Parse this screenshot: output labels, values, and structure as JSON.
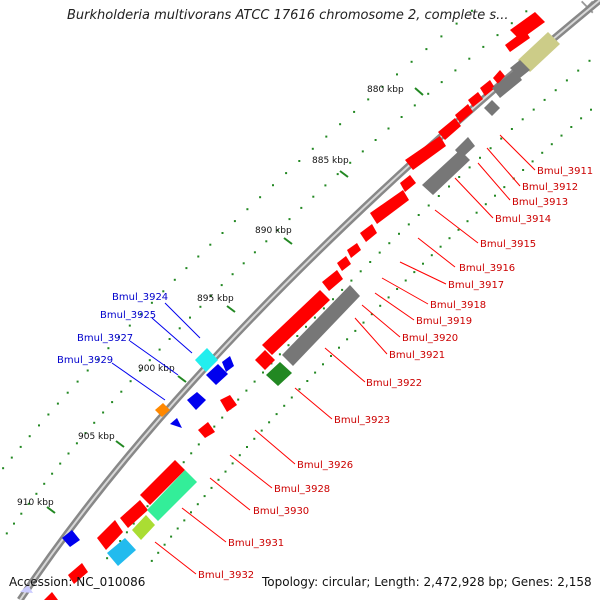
{
  "window": {
    "title": "Burkholderia multivorans ATCC 17616 chromosome 2, complete s...",
    "close_glyph": "×"
  },
  "scale_labels": [
    "880 kbp",
    "885 kbp",
    "890 kbp",
    "895 kbp",
    "900 kbp",
    "905 kbp",
    "910 kbp"
  ],
  "gene_labels_right": [
    "Bmul_3911",
    "Bmul_3912",
    "Bmul_3913",
    "Bmul_3914",
    "Bmul_3915",
    "Bmul_3916",
    "Bmul_3917",
    "Bmul_3918",
    "Bmul_3919",
    "Bmul_3920",
    "Bmul_3921",
    "Bmul_3922",
    "Bmul_3923",
    "Bmul_3926",
    "Bmul_3928",
    "Bmul_3930",
    "Bmul_3931",
    "Bmul_3932"
  ],
  "gene_labels_left": [
    "Bmul_3924",
    "Bmul_3925",
    "Bmul_3927",
    "Bmul_3929"
  ],
  "colors": {
    "cds_red": "#ff0000",
    "gray_feature": "#777777",
    "olive_feature": "#cccc88",
    "green_feature": "#228822",
    "mint_feature": "#33ee99",
    "lime_feature": "#aadd33",
    "cyan_feature": "#22bbee",
    "blue_feature": "#0000ee",
    "orange_feature": "#ff8800",
    "label_red": "#cc0000",
    "label_blue": "#0000cc",
    "dots_green": "#228822"
  },
  "footer": {
    "accession": "Accession: NC_010086",
    "summary": "Topology: circular; Length: 2,472,928 bp; Genes: 2,158"
  }
}
